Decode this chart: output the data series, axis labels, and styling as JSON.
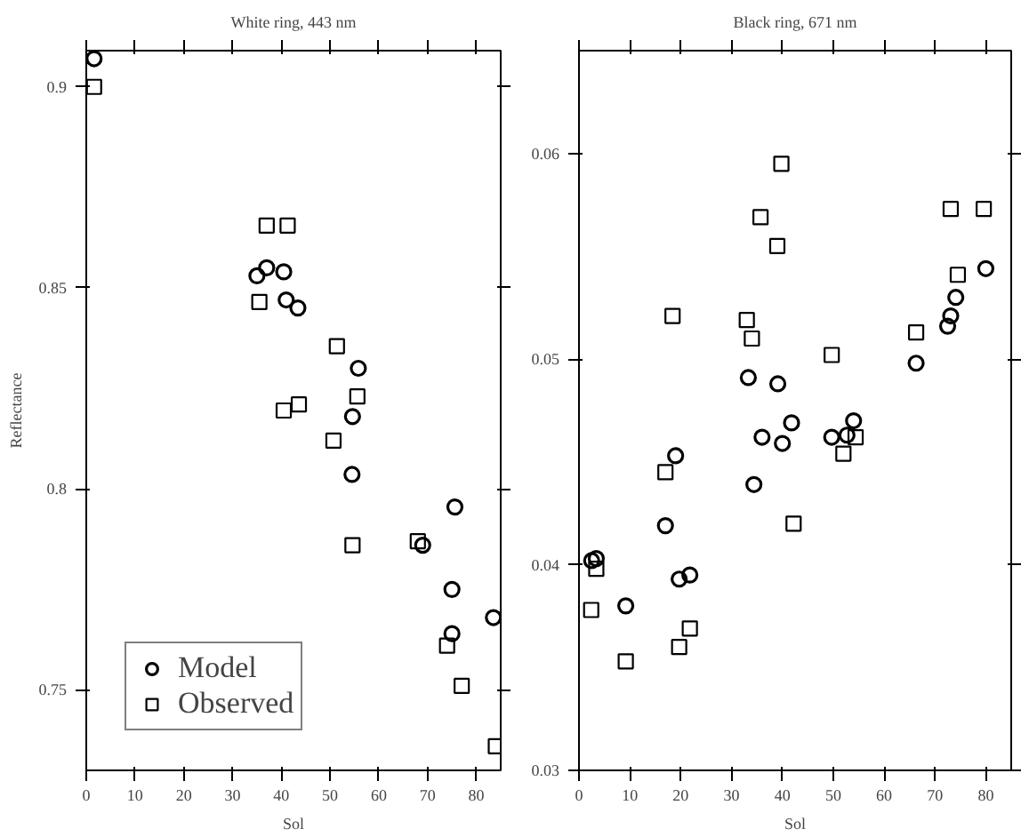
{
  "chart_data": [
    {
      "type": "scatter",
      "title": "White ring, 443 nm",
      "xlabel": "Sol",
      "ylabel": "Reflectance",
      "xlim": [
        0,
        85
      ],
      "xticks": [
        0,
        10,
        20,
        30,
        40,
        50,
        60,
        70,
        80
      ],
      "ylim": [
        0.73,
        0.909
      ],
      "yticks": [
        0.75,
        0.8,
        0.85,
        0.9
      ],
      "legend": "bottom left",
      "grid": false,
      "series": [
        {
          "name": "Model",
          "color": "#000000",
          "marker": "circle",
          "x": [
            1.6,
            35,
            37,
            40.5,
            41,
            43.4,
            54.6,
            55.8,
            54.5,
            69,
            75.6,
            75,
            75,
            83.5
          ],
          "values": [
            0.907,
            0.853,
            0.855,
            0.854,
            0.847,
            0.845,
            0.818,
            0.83,
            0.8036,
            0.786,
            0.7955,
            0.775,
            0.764,
            0.768
          ]
        },
        {
          "name": "Observed",
          "color": "#000000",
          "marker": "square",
          "x": [
            1.6,
            37,
            41.3,
            35.5,
            51.4,
            55.6,
            40.5,
            43.6,
            50.7,
            54.6,
            68,
            74,
            77,
            84
          ],
          "values": [
            0.9,
            0.8655,
            0.8655,
            0.8465,
            0.8355,
            0.823,
            0.8195,
            0.821,
            0.812,
            0.786,
            0.787,
            0.761,
            0.751,
            0.736
          ]
        }
      ]
    },
    {
      "type": "scatter",
      "title": "Black ring, 671 nm",
      "xlabel": "Sol",
      "xlim": [
        0,
        85
      ],
      "xticks": [
        0,
        10,
        20,
        30,
        40,
        50,
        60,
        70,
        80
      ],
      "ylim": [
        0.03,
        0.065
      ],
      "yticks": [
        0.03,
        0.04,
        0.05,
        0.06
      ],
      "grid": false,
      "series": [
        {
          "color": "#000000",
          "marker": "circle",
          "x": [
            33.3,
            39.1,
            66.3,
            80,
            74.1,
            73.1,
            72.5,
            41.8,
            36,
            40,
            49.7,
            52.7,
            54,
            34.4,
            19,
            17,
            3.4,
            2.5,
            19.7,
            21.8,
            9.2
          ],
          "values": [
            0.0491,
            0.0488,
            0.0498,
            0.0544,
            0.053,
            0.0521,
            0.0516,
            0.0469,
            0.0462,
            0.0459,
            0.0462,
            0.0463,
            0.047,
            0.0439,
            0.0453,
            0.0419,
            0.0403,
            0.0402,
            0.0393,
            0.0395,
            0.038
          ]
        },
        {
          "color": "#000000",
          "marker": "square",
          "x": [
            39.8,
            35.7,
            39,
            18.4,
            33,
            34,
            49.7,
            66.3,
            73.1,
            79.6,
            74.5,
            54.4,
            52,
            17,
            42.2,
            3.4,
            2.4,
            21.8,
            19.7,
            9.2
          ],
          "values": [
            0.0595,
            0.0569,
            0.0555,
            0.0521,
            0.0519,
            0.051,
            0.0502,
            0.0513,
            0.0573,
            0.0573,
            0.0541,
            0.0462,
            0.0454,
            0.0445,
            0.042,
            0.0398,
            0.0378,
            0.0369,
            0.036,
            0.0353
          ]
        }
      ]
    }
  ]
}
